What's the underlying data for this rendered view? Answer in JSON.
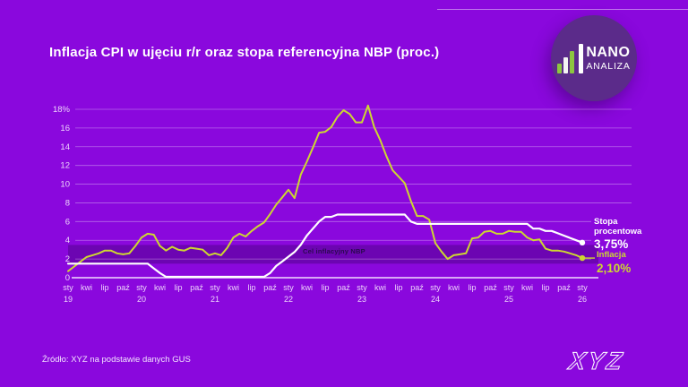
{
  "title": "Inflacja CPI w ujęciu r/r oraz stopa referencyjna NBP (proc.)",
  "source": "Źródło: XYZ na podstawie danych GUS",
  "footer_logo": "XYZ",
  "logo": {
    "line1": "NANO",
    "line2": "ANALIZA"
  },
  "colors": {
    "background": "#8A08DD",
    "logo_circle": "#5B2B8A",
    "logo_green": "#8DC63F",
    "inflation_line": "#CDD830",
    "rate_line": "#FFFFFF",
    "gridline": "rgba(255,255,255,0.38)",
    "axis_line": "#F2DCFE",
    "tick_text": "#EDD3FB",
    "band_fill": "rgba(25,0,55,0.26)",
    "band_label_text": "#2A0A4E"
  },
  "chart_data": {
    "type": "line",
    "title": "Inflacja CPI w ujęciu r/r oraz stopa referencyjna NBP (proc.)",
    "x_unit": "month",
    "x_range": [
      "sty 2019",
      "sty 2026"
    ],
    "ylim": [
      0,
      18
    ],
    "grid": true,
    "y_ticks": [
      {
        "v": 0,
        "label": "0"
      },
      {
        "v": 2,
        "label": "2"
      },
      {
        "v": 4,
        "label": "4"
      },
      {
        "v": 6,
        "label": "6"
      },
      {
        "v": 8,
        "label": "8"
      },
      {
        "v": 10,
        "label": "10"
      },
      {
        "v": 12,
        "label": "12"
      },
      {
        "v": 14,
        "label": "14"
      },
      {
        "v": 16,
        "label": "16"
      },
      {
        "v": 18,
        "label": "18%"
      }
    ],
    "x_ticks": [
      {
        "i": 0,
        "m": "sty",
        "y": "19"
      },
      {
        "i": 3,
        "m": "kwi"
      },
      {
        "i": 6,
        "m": "lip"
      },
      {
        "i": 9,
        "m": "paź"
      },
      {
        "i": 12,
        "m": "sty",
        "y": "20"
      },
      {
        "i": 15,
        "m": "kwi"
      },
      {
        "i": 18,
        "m": "lip"
      },
      {
        "i": 21,
        "m": "paź"
      },
      {
        "i": 24,
        "m": "sty",
        "y": "21"
      },
      {
        "i": 27,
        "m": "kwi"
      },
      {
        "i": 30,
        "m": "lip"
      },
      {
        "i": 33,
        "m": "paź"
      },
      {
        "i": 36,
        "m": "sty",
        "y": "22"
      },
      {
        "i": 39,
        "m": "kwi"
      },
      {
        "i": 42,
        "m": "lip"
      },
      {
        "i": 45,
        "m": "paź"
      },
      {
        "i": 48,
        "m": "sty",
        "y": "23"
      },
      {
        "i": 51,
        "m": "kwi"
      },
      {
        "i": 54,
        "m": "lip"
      },
      {
        "i": 57,
        "m": "paź"
      },
      {
        "i": 60,
        "m": "sty",
        "y": "24"
      },
      {
        "i": 63,
        "m": "kwi"
      },
      {
        "i": 66,
        "m": "lip"
      },
      {
        "i": 69,
        "m": "paź"
      },
      {
        "i": 72,
        "m": "sty",
        "y": "25"
      },
      {
        "i": 75,
        "m": "kwi"
      },
      {
        "i": 78,
        "m": "lip"
      },
      {
        "i": 81,
        "m": "paź"
      },
      {
        "i": 84,
        "m": "sty",
        "y": "26"
      }
    ],
    "target_band": {
      "label": "Cel inflacyjny NBP",
      "from": 1.5,
      "to": 3.5
    },
    "series": [
      {
        "name": "Inflacja",
        "color": "#CDD830",
        "end_value": "2,10%",
        "values": [
          0.7,
          1.2,
          1.7,
          2.2,
          2.4,
          2.6,
          2.9,
          2.9,
          2.6,
          2.5,
          2.6,
          3.4,
          4.3,
          4.7,
          4.6,
          3.4,
          2.9,
          3.3,
          3.0,
          2.9,
          3.2,
          3.1,
          3.0,
          2.4,
          2.6,
          2.4,
          3.2,
          4.3,
          4.7,
          4.4,
          5.0,
          5.5,
          5.9,
          6.8,
          7.8,
          8.6,
          9.4,
          8.5,
          11.0,
          12.4,
          13.9,
          15.5,
          15.6,
          16.1,
          17.2,
          17.9,
          17.5,
          16.6,
          16.6,
          18.4,
          16.1,
          14.7,
          13.0,
          11.5,
          10.8,
          10.1,
          8.2,
          6.6,
          6.6,
          6.2,
          3.7,
          2.8,
          2.0,
          2.4,
          2.5,
          2.6,
          4.2,
          4.3,
          4.9,
          5.0,
          4.7,
          4.7,
          5.0,
          4.9,
          4.9,
          4.3,
          4.0,
          4.1,
          3.1,
          2.9,
          2.9,
          2.8,
          2.6,
          2.4,
          2.1
        ]
      },
      {
        "name": "Stopa procentowa",
        "color": "#FFFFFF",
        "end_value": "3,75%",
        "values": [
          1.5,
          1.5,
          1.5,
          1.5,
          1.5,
          1.5,
          1.5,
          1.5,
          1.5,
          1.5,
          1.5,
          1.5,
          1.5,
          1.5,
          1.0,
          0.5,
          0.1,
          0.1,
          0.1,
          0.1,
          0.1,
          0.1,
          0.1,
          0.1,
          0.1,
          0.1,
          0.1,
          0.1,
          0.1,
          0.1,
          0.1,
          0.1,
          0.1,
          0.5,
          1.25,
          1.75,
          2.25,
          2.75,
          3.5,
          4.5,
          5.25,
          6.0,
          6.5,
          6.5,
          6.75,
          6.75,
          6.75,
          6.75,
          6.75,
          6.75,
          6.75,
          6.75,
          6.75,
          6.75,
          6.75,
          6.75,
          6.0,
          5.75,
          5.75,
          5.75,
          5.75,
          5.75,
          5.75,
          5.75,
          5.75,
          5.75,
          5.75,
          5.75,
          5.75,
          5.75,
          5.75,
          5.75,
          5.75,
          5.75,
          5.75,
          5.75,
          5.25,
          5.25,
          5.0,
          5.0,
          4.75,
          4.5,
          4.25,
          4.0,
          3.75
        ]
      }
    ],
    "legend_position": "right-end-labels"
  }
}
